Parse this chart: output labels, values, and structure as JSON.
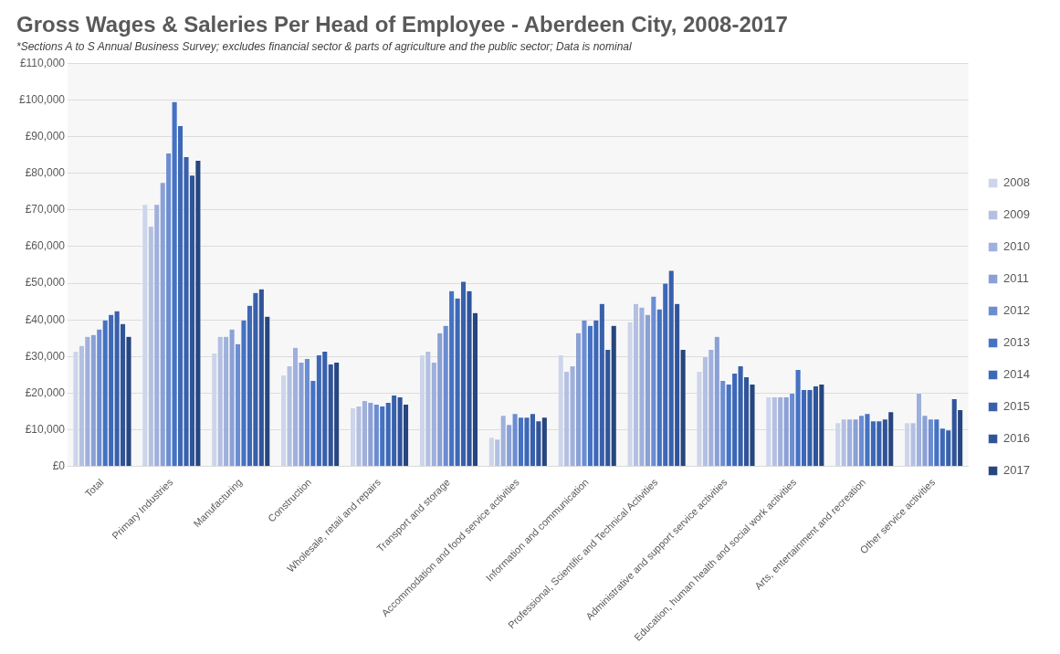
{
  "chart_data": {
    "type": "bar",
    "title": "Gross Wages & Saleries Per Head of Employee - Aberdeen City, 2008-2017",
    "subtitle": "*Sections A to S Annual Business Survey; excludes financial sector & parts of agriculture and the public sector; Data is nominal",
    "categories": [
      "Total",
      "Primary Industries",
      "Manufacturing",
      "Construction",
      "Wholesale, retail and repairs",
      "Transport and storage",
      "Accommodation and food service activities",
      "Information and communication",
      "Professional, Scientific and Technical Activities",
      "Administrative and support service activities",
      "Education, human health and social work activities",
      "Arts, entertainment and recreation",
      "Other service activities"
    ],
    "series": [
      {
        "name": "2008",
        "color": "#cdd5ea",
        "values": [
          31500,
          71500,
          31000,
          25000,
          16000,
          30500,
          8000,
          30500,
          39500,
          26000,
          19000,
          12000,
          12000
        ]
      },
      {
        "name": "2009",
        "color": "#b4c0e2",
        "values": [
          33000,
          65500,
          35500,
          27500,
          16500,
          31500,
          7500,
          26000,
          44500,
          30000,
          19000,
          13000,
          12000
        ]
      },
      {
        "name": "2010",
        "color": "#9fb0dc",
        "values": [
          35500,
          71500,
          35500,
          32500,
          18000,
          28500,
          14000,
          27500,
          43500,
          32000,
          19000,
          13000,
          20000
        ]
      },
      {
        "name": "2011",
        "color": "#8aa0d6",
        "values": [
          36000,
          77500,
          37500,
          28500,
          17500,
          36500,
          11500,
          36500,
          41500,
          35500,
          19000,
          13000,
          14000
        ]
      },
      {
        "name": "2012",
        "color": "#6b8dd2",
        "values": [
          37500,
          85500,
          33500,
          29500,
          17000,
          38500,
          14500,
          40000,
          46500,
          23500,
          20000,
          14000,
          13000
        ]
      },
      {
        "name": "2013",
        "color": "#4472c4",
        "values": [
          40000,
          99500,
          40000,
          23500,
          16500,
          48000,
          13500,
          38500,
          43000,
          22500,
          26500,
          14500,
          13000
        ]
      },
      {
        "name": "2014",
        "color": "#3d68b8",
        "values": [
          41500,
          93000,
          44000,
          30500,
          17500,
          46000,
          13500,
          40000,
          50000,
          25500,
          21000,
          12500,
          10500
        ]
      },
      {
        "name": "2015",
        "color": "#3860ab",
        "values": [
          42500,
          84500,
          47500,
          31500,
          19500,
          50500,
          14500,
          44500,
          53500,
          27500,
          21000,
          12500,
          10000
        ]
      },
      {
        "name": "2016",
        "color": "#30549a",
        "values": [
          39000,
          79500,
          48500,
          28000,
          19000,
          48000,
          12500,
          32000,
          44500,
          24500,
          22000,
          13000,
          18500
        ]
      },
      {
        "name": "2017",
        "color": "#27457e",
        "values": [
          35500,
          83500,
          41000,
          28500,
          17000,
          42000,
          13500,
          38500,
          32000,
          22500,
          22500,
          15000,
          15500
        ]
      }
    ],
    "ylim": [
      0,
      110000
    ],
    "yticks": [
      {
        "value": 0,
        "label": "£0"
      },
      {
        "value": 10000,
        "label": "£10,000"
      },
      {
        "value": 20000,
        "label": "£20,000"
      },
      {
        "value": 30000,
        "label": "£30,000"
      },
      {
        "value": 40000,
        "label": "£40,000"
      },
      {
        "value": 50000,
        "label": "£50,000"
      },
      {
        "value": 60000,
        "label": "£60,000"
      },
      {
        "value": 70000,
        "label": "£70,000"
      },
      {
        "value": 80000,
        "label": "£80,000"
      },
      {
        "value": 90000,
        "label": "£90,000"
      },
      {
        "value": 100000,
        "label": "£100,000"
      },
      {
        "value": 110000,
        "label": "£110,000"
      }
    ],
    "grid": "y",
    "legend": "right"
  }
}
